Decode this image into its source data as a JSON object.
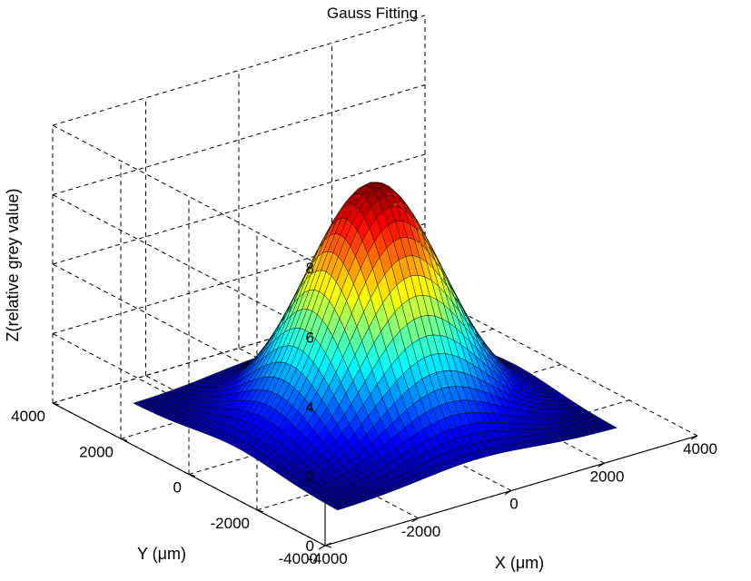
{
  "chart_data": {
    "type": "surface",
    "title": "Gauss Fitting",
    "xlabel": "X (μm)",
    "ylabel": "Y (μm)",
    "zlabel": "Z(relative grey value)",
    "xlim": [
      -4000,
      4000
    ],
    "ylim": [
      -4000,
      4000
    ],
    "zlim": [
      0,
      8
    ],
    "xticks": [
      -4000,
      -2000,
      0,
      2000,
      4000
    ],
    "yticks": [
      -4000,
      -2000,
      0,
      2000,
      4000
    ],
    "zticks": [
      0,
      2,
      4,
      6,
      8
    ],
    "grid": true,
    "grid_style": "dashed",
    "colormap": "jet",
    "surface": {
      "function": "gaussian",
      "amplitude": 6.7,
      "offset": 0.1,
      "center": [
        0,
        0
      ],
      "sigma": [
        1200,
        1200
      ],
      "x_range": [
        -3000,
        3000
      ],
      "y_range": [
        -3000,
        3000
      ],
      "grid_n": 41
    }
  }
}
